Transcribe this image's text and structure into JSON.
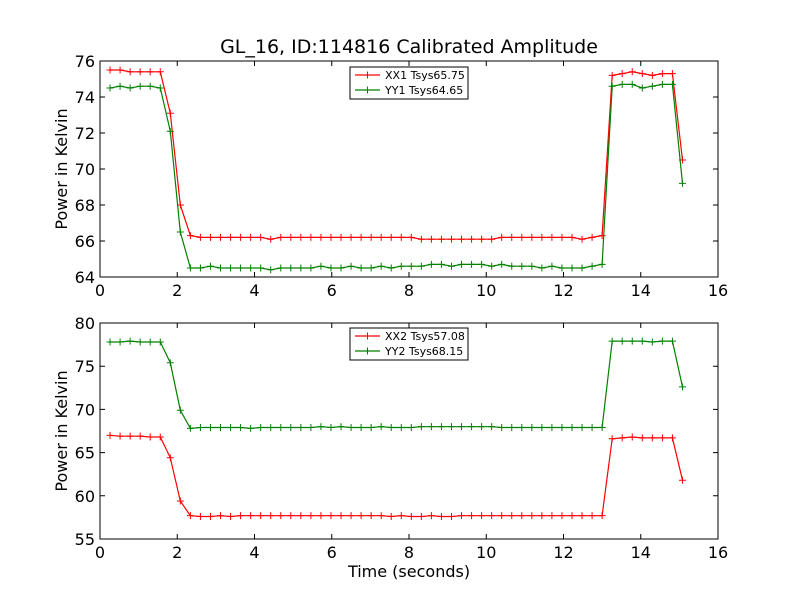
{
  "chart_data": [
    {
      "type": "line",
      "title": "GL_16, ID:114816 Calibrated Amplitude",
      "xlabel": "",
      "ylabel": "Power in Kelvin",
      "xlim": [
        0,
        16
      ],
      "ylim": [
        64,
        76
      ],
      "xticks": [
        "0",
        "2",
        "4",
        "6",
        "8",
        "10",
        "12",
        "14",
        "16"
      ],
      "yticks": [
        "64",
        "66",
        "68",
        "70",
        "72",
        "74",
        "76"
      ],
      "legend_position": "top-center",
      "x": [
        0.26,
        0.52,
        0.78,
        1.04,
        1.3,
        1.56,
        1.82,
        2.08,
        2.34,
        2.6,
        2.86,
        3.12,
        3.38,
        3.64,
        3.9,
        4.16,
        4.42,
        4.68,
        4.94,
        5.2,
        5.46,
        5.72,
        5.98,
        6.24,
        6.5,
        6.76,
        7.02,
        7.28,
        7.54,
        7.8,
        8.06,
        8.32,
        8.58,
        8.84,
        9.1,
        9.36,
        9.62,
        9.88,
        10.14,
        10.4,
        10.66,
        10.92,
        11.18,
        11.44,
        11.7,
        11.96,
        12.22,
        12.48,
        12.74,
        13.0,
        13.26,
        13.52,
        13.78,
        14.04,
        14.3,
        14.56,
        14.82,
        15.08
      ],
      "series": [
        {
          "name": "XX1 Tsys65.75",
          "color": "#ff0000",
          "values": [
            75.5,
            75.5,
            75.4,
            75.4,
            75.4,
            75.4,
            73.1,
            68.0,
            66.3,
            66.2,
            66.2,
            66.2,
            66.2,
            66.2,
            66.2,
            66.2,
            66.1,
            66.2,
            66.2,
            66.2,
            66.2,
            66.2,
            66.2,
            66.2,
            66.2,
            66.2,
            66.2,
            66.2,
            66.2,
            66.2,
            66.2,
            66.1,
            66.1,
            66.1,
            66.1,
            66.1,
            66.1,
            66.1,
            66.1,
            66.2,
            66.2,
            66.2,
            66.2,
            66.2,
            66.2,
            66.2,
            66.2,
            66.1,
            66.2,
            66.3,
            75.2,
            75.3,
            75.4,
            75.3,
            75.2,
            75.3,
            75.3,
            70.5
          ]
        },
        {
          "name": "YY1 Tsys64.65",
          "color": "#008000",
          "values": [
            74.5,
            74.6,
            74.5,
            74.6,
            74.6,
            74.5,
            72.1,
            66.5,
            64.5,
            64.5,
            64.6,
            64.5,
            64.5,
            64.5,
            64.5,
            64.5,
            64.4,
            64.5,
            64.5,
            64.5,
            64.5,
            64.6,
            64.5,
            64.5,
            64.6,
            64.5,
            64.5,
            64.6,
            64.5,
            64.6,
            64.6,
            64.6,
            64.7,
            64.7,
            64.6,
            64.7,
            64.7,
            64.7,
            64.6,
            64.7,
            64.6,
            64.6,
            64.6,
            64.5,
            64.6,
            64.5,
            64.5,
            64.5,
            64.6,
            64.7,
            74.6,
            74.7,
            74.7,
            74.5,
            74.6,
            74.7,
            74.7,
            69.2
          ]
        }
      ]
    },
    {
      "type": "line",
      "title": "",
      "xlabel": "Time (seconds)",
      "ylabel": "Power in Kelvin",
      "xlim": [
        0,
        16
      ],
      "ylim": [
        55,
        80
      ],
      "xticks": [
        "0",
        "2",
        "4",
        "6",
        "8",
        "10",
        "12",
        "14",
        "16"
      ],
      "yticks": [
        "55",
        "60",
        "65",
        "70",
        "75",
        "80"
      ],
      "legend_position": "top-center",
      "x": [
        0.26,
        0.52,
        0.78,
        1.04,
        1.3,
        1.56,
        1.82,
        2.08,
        2.34,
        2.6,
        2.86,
        3.12,
        3.38,
        3.64,
        3.9,
        4.16,
        4.42,
        4.68,
        4.94,
        5.2,
        5.46,
        5.72,
        5.98,
        6.24,
        6.5,
        6.76,
        7.02,
        7.28,
        7.54,
        7.8,
        8.06,
        8.32,
        8.58,
        8.84,
        9.1,
        9.36,
        9.62,
        9.88,
        10.14,
        10.4,
        10.66,
        10.92,
        11.18,
        11.44,
        11.7,
        11.96,
        12.22,
        12.48,
        12.74,
        13.0,
        13.26,
        13.52,
        13.78,
        14.04,
        14.3,
        14.56,
        14.82,
        15.08
      ],
      "series": [
        {
          "name": "XX2 Tsys57.08",
          "color": "#ff0000",
          "values": [
            67.0,
            66.9,
            66.9,
            66.9,
            66.8,
            66.8,
            64.4,
            59.4,
            57.7,
            57.6,
            57.6,
            57.7,
            57.6,
            57.7,
            57.7,
            57.7,
            57.7,
            57.7,
            57.7,
            57.7,
            57.7,
            57.7,
            57.7,
            57.7,
            57.7,
            57.7,
            57.7,
            57.7,
            57.6,
            57.7,
            57.6,
            57.6,
            57.7,
            57.6,
            57.6,
            57.7,
            57.7,
            57.7,
            57.7,
            57.7,
            57.7,
            57.7,
            57.7,
            57.7,
            57.7,
            57.7,
            57.7,
            57.7,
            57.7,
            57.7,
            66.6,
            66.7,
            66.8,
            66.7,
            66.7,
            66.7,
            66.7,
            61.8
          ]
        },
        {
          "name": "YY2 Tsys68.15",
          "color": "#008000",
          "values": [
            77.8,
            77.8,
            77.9,
            77.8,
            77.8,
            77.8,
            75.4,
            69.9,
            67.8,
            67.9,
            67.9,
            67.9,
            67.9,
            67.9,
            67.8,
            67.9,
            67.9,
            67.9,
            67.9,
            67.9,
            67.9,
            68.0,
            67.9,
            68.0,
            67.9,
            67.9,
            67.9,
            68.0,
            67.9,
            67.9,
            67.9,
            68.0,
            68.0,
            68.0,
            68.0,
            68.0,
            68.0,
            68.0,
            68.0,
            67.9,
            67.9,
            67.9,
            67.9,
            67.9,
            67.9,
            67.9,
            67.9,
            67.9,
            67.9,
            67.9,
            77.9,
            77.9,
            77.9,
            77.9,
            77.8,
            77.9,
            77.9,
            72.6
          ]
        }
      ]
    }
  ]
}
